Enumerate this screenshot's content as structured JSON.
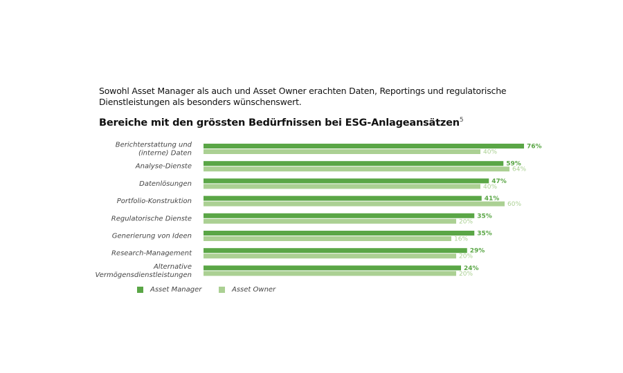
{
  "intro": "Sowohl Asset Manager als auch und Asset Owner erachten Daten, Reportings und regulatorische Dienstleistungen als besonders wünschenswert.",
  "chart_data": {
    "type": "bar",
    "orientation": "horizontal",
    "title": "Bereiche mit den grössten Bedürfnissen bei ESG-Anlageansätzen",
    "title_footnote": "5",
    "categories": [
      [
        "Berichterstattung und",
        "(interne) Daten"
      ],
      [
        "Analyse-Dienste"
      ],
      [
        "Datenlösungen"
      ],
      [
        "Portfolio-Konstruktion"
      ],
      [
        "Regulatorische Dienste"
      ],
      [
        "Generierung von Ideen"
      ],
      [
        "Research-Management"
      ],
      [
        "Alternative",
        "Vermögensdienstleistungen"
      ]
    ],
    "series": [
      {
        "name": "Asset Manager",
        "color": "#5aa646",
        "values": [
          76,
          59,
          47,
          41,
          35,
          35,
          29,
          24
        ]
      },
      {
        "name": "Asset Owner",
        "color": "#abd093",
        "values": [
          40,
          64,
          40,
          60,
          20,
          16,
          20,
          20
        ]
      }
    ],
    "unit": "%",
    "legend_position": "bottom-left",
    "grid": false
  }
}
